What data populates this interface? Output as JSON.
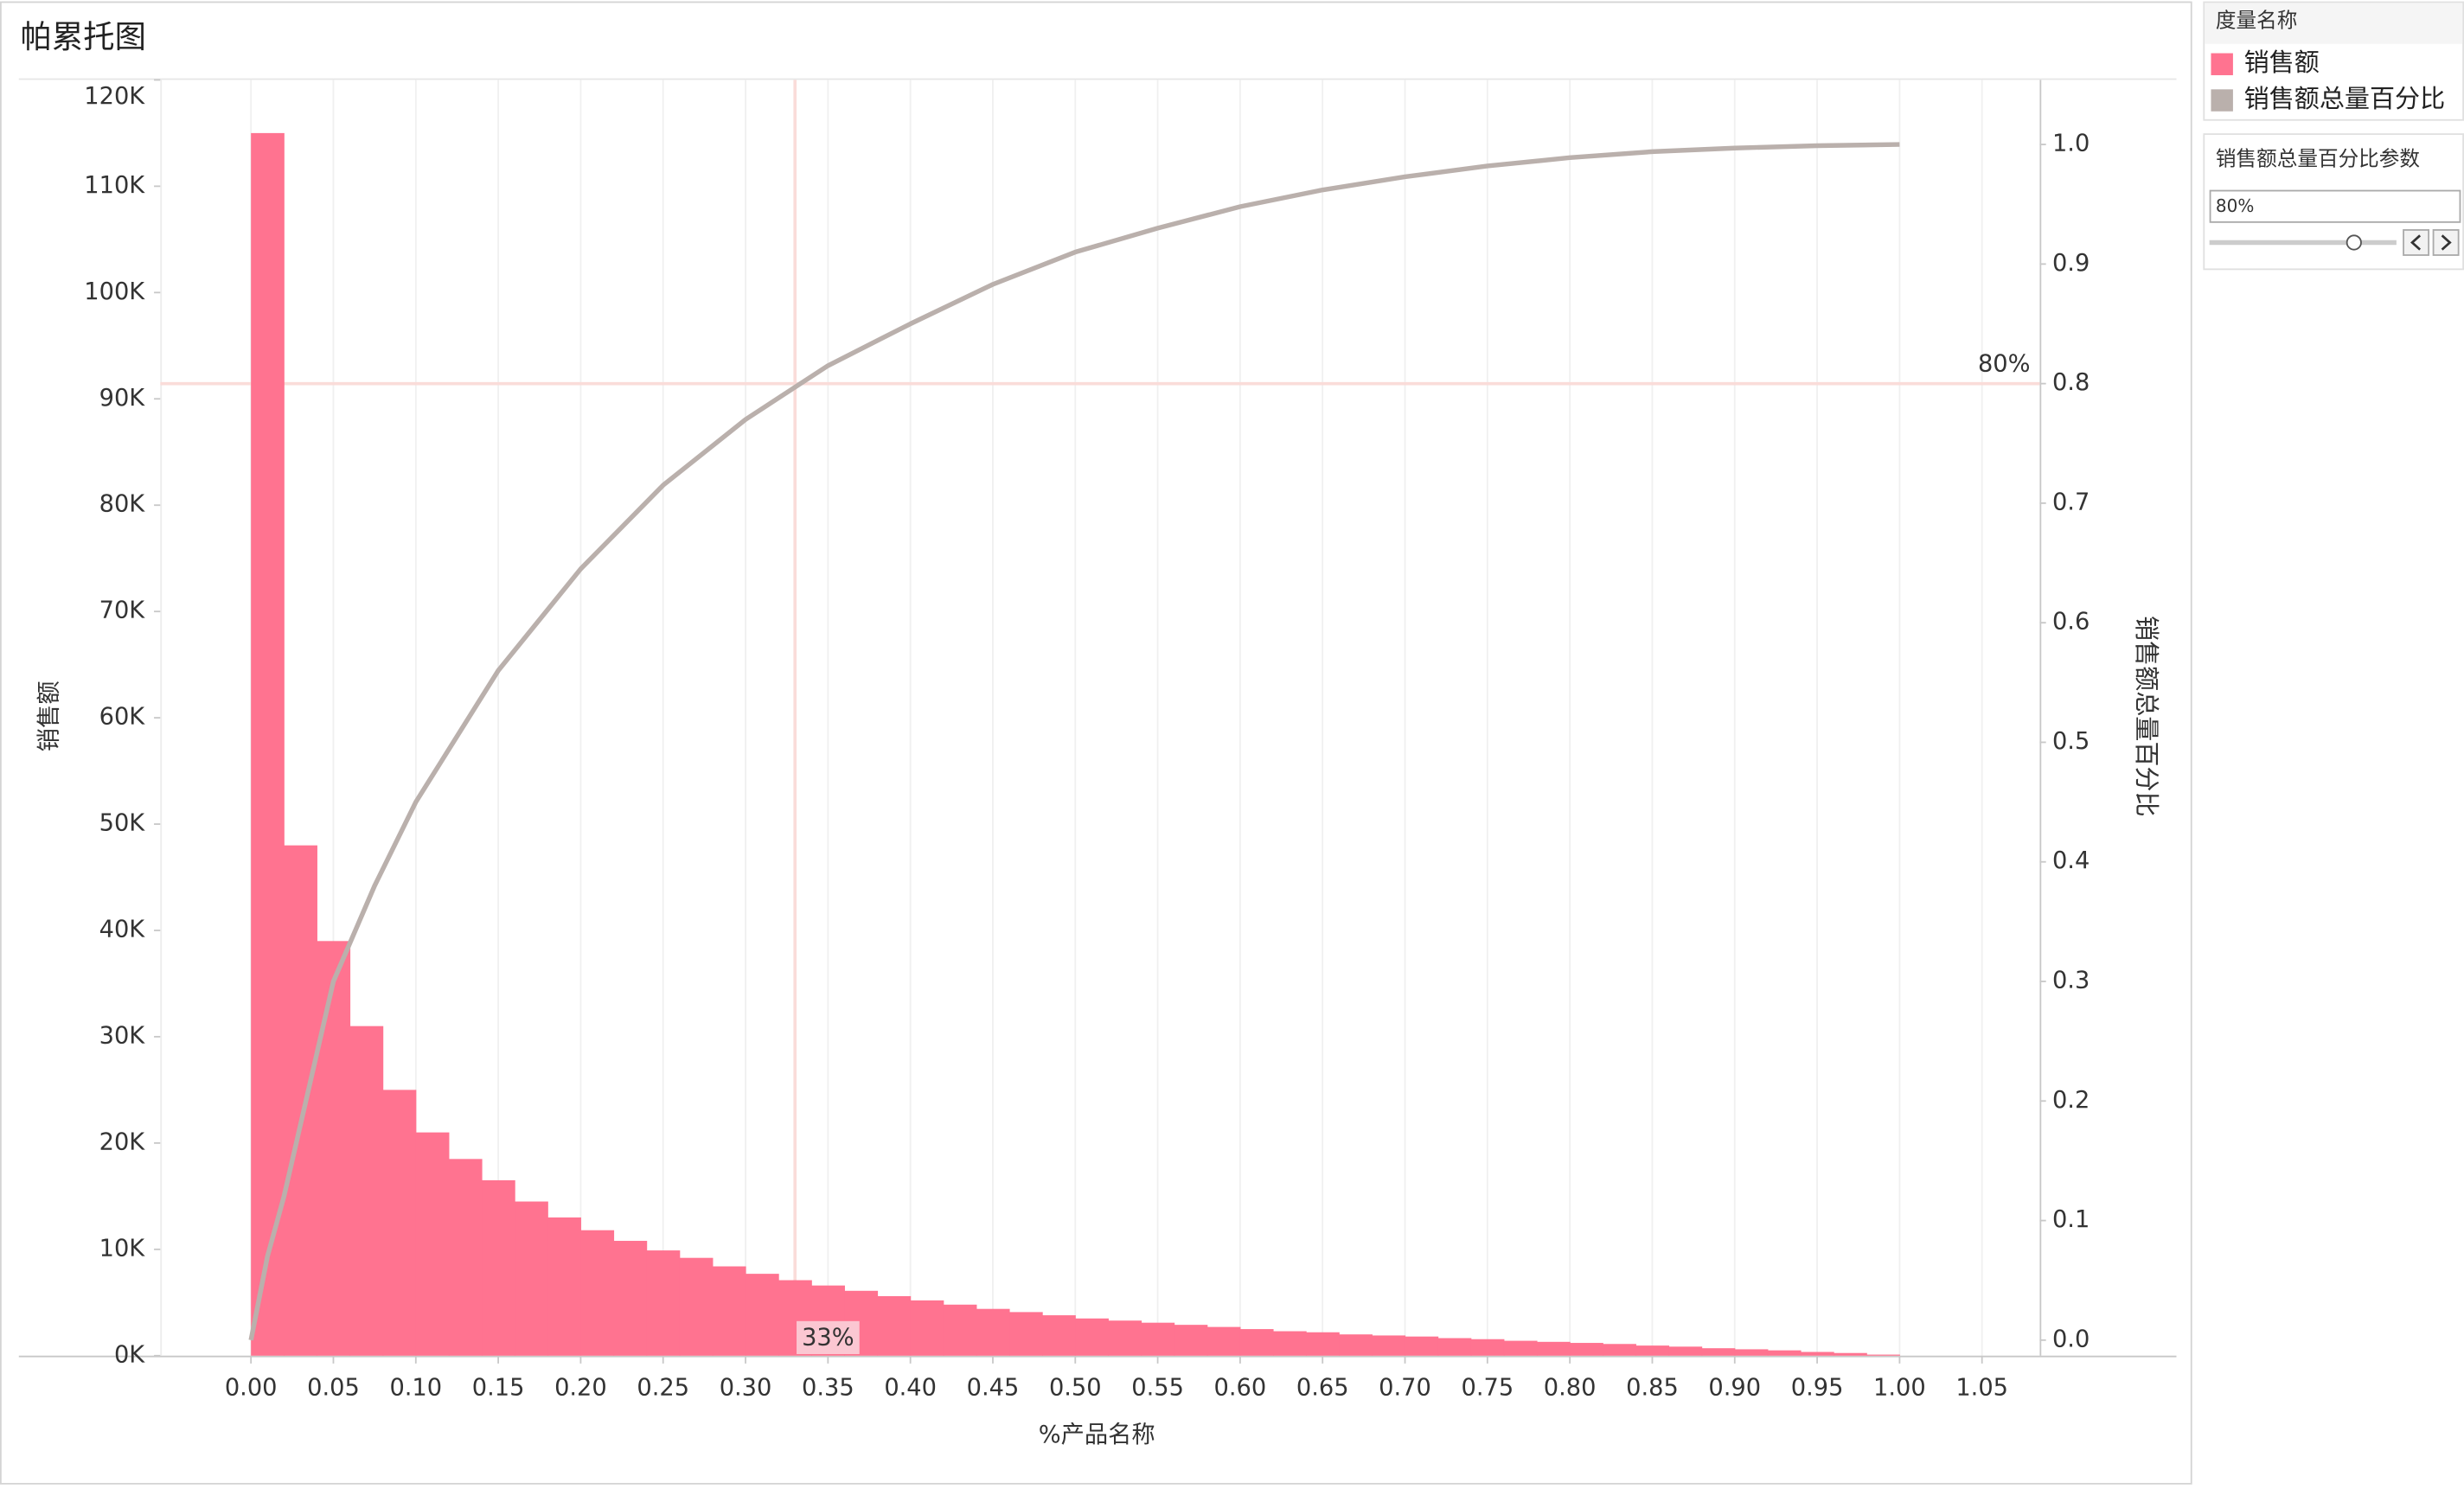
{
  "chart_data": {
    "type": "pareto",
    "title": "帕累托图",
    "x_label": "%产品名称",
    "y_label": "销售额",
    "y2_label": "销售额总量百分比",
    "legend_title": "度量名称",
    "parameter_title": "销售额总量百分比参数",
    "parameter_value": "80%",
    "xlim": [
      -0.055,
      1.085
    ],
    "xticks": [
      {
        "value": 0,
        "label": "0.00"
      },
      {
        "value": 0.05,
        "label": "0.05"
      },
      {
        "value": 0.1,
        "label": "0.10"
      },
      {
        "value": 0.15,
        "label": "0.15"
      },
      {
        "value": 0.2,
        "label": "0.20"
      },
      {
        "value": 0.25,
        "label": "0.25"
      },
      {
        "value": 0.3,
        "label": "0.30"
      },
      {
        "value": 0.35,
        "label": "0.35"
      },
      {
        "value": 0.4,
        "label": "0.40"
      },
      {
        "value": 0.45,
        "label": "0.45"
      },
      {
        "value": 0.5,
        "label": "0.50"
      },
      {
        "value": 0.55,
        "label": "0.55"
      },
      {
        "value": 0.6,
        "label": "0.60"
      },
      {
        "value": 0.65,
        "label": "0.65"
      },
      {
        "value": 0.7,
        "label": "0.70"
      },
      {
        "value": 0.75,
        "label": "0.75"
      },
      {
        "value": 0.8,
        "label": "0.80"
      },
      {
        "value": 0.85,
        "label": "0.85"
      },
      {
        "value": 0.9,
        "label": "0.90"
      },
      {
        "value": 0.95,
        "label": "0.95"
      },
      {
        "value": 1,
        "label": "1.00"
      },
      {
        "value": 1.05,
        "label": "1.05"
      }
    ],
    "ylim": [
      0,
      120000
    ],
    "yticks": [
      {
        "value": 0,
        "label": "0K"
      },
      {
        "value": 10000,
        "label": "10K"
      },
      {
        "value": 20000,
        "label": "20K"
      },
      {
        "value": 30000,
        "label": "30K"
      },
      {
        "value": 40000,
        "label": "40K"
      },
      {
        "value": 50000,
        "label": "50K"
      },
      {
        "value": 60000,
        "label": "60K"
      },
      {
        "value": 70000,
        "label": "70K"
      },
      {
        "value": 80000,
        "label": "80K"
      },
      {
        "value": 90000,
        "label": "90K"
      },
      {
        "value": 100000,
        "label": "100K"
      },
      {
        "value": 110000,
        "label": "110K"
      },
      {
        "value": 120000,
        "label": "120K"
      }
    ],
    "y2lim": [
      -0.013,
      1.054
    ],
    "y2ticks": [
      {
        "value": 0,
        "label": "0.0"
      },
      {
        "value": 0.1,
        "label": "0.1"
      },
      {
        "value": 0.2,
        "label": "0.2"
      },
      {
        "value": 0.3,
        "label": "0.3"
      },
      {
        "value": 0.4,
        "label": "0.4"
      },
      {
        "value": 0.5,
        "label": "0.5"
      },
      {
        "value": 0.6,
        "label": "0.6"
      },
      {
        "value": 0.7,
        "label": "0.7"
      },
      {
        "value": 0.8,
        "label": "0.8"
      },
      {
        "value": 0.9,
        "label": "0.9"
      },
      {
        "value": 1,
        "label": "1.0"
      }
    ],
    "xgrid": true,
    "reference_lines": {
      "y2": {
        "value": 0.8,
        "label": "80%"
      },
      "x": {
        "value": 0.33,
        "label": "33%"
      }
    },
    "series": [
      {
        "name": "销售额",
        "type": "bar",
        "color": "#ff7390",
        "x": [
          0,
          0.02,
          0.04,
          0.06,
          0.08,
          0.1,
          0.12,
          0.14,
          0.16,
          0.18,
          0.2,
          0.22,
          0.24,
          0.26,
          0.28,
          0.3,
          0.32,
          0.34,
          0.36,
          0.38,
          0.4,
          0.42,
          0.44,
          0.46,
          0.48,
          0.5,
          0.52,
          0.54,
          0.56,
          0.58,
          0.6,
          0.62,
          0.64,
          0.66,
          0.68,
          0.7,
          0.72,
          0.74,
          0.76,
          0.78,
          0.8,
          0.82,
          0.84,
          0.86,
          0.88,
          0.9,
          0.92,
          0.94,
          0.96,
          0.98
        ],
        "values": [
          115000,
          48000,
          39000,
          31000,
          25000,
          21000,
          18500,
          16500,
          14500,
          13000,
          11800,
          10800,
          9900,
          9200,
          8400,
          7700,
          7100,
          6600,
          6100,
          5600,
          5200,
          4800,
          4400,
          4100,
          3800,
          3500,
          3300,
          3100,
          2900,
          2700,
          2500,
          2300,
          2200,
          2000,
          1900,
          1800,
          1650,
          1550,
          1400,
          1300,
          1200,
          1100,
          950,
          850,
          700,
          600,
          500,
          350,
          250,
          100
        ]
      },
      {
        "name": "销售额总量百分比",
        "type": "line",
        "axis": "y2",
        "color": "#bab0ac",
        "x": [
          0,
          0.01,
          0.02,
          0.03,
          0.05,
          0.075,
          0.1,
          0.15,
          0.2,
          0.25,
          0.3,
          0.35,
          0.4,
          0.45,
          0.5,
          0.55,
          0.6,
          0.65,
          0.7,
          0.75,
          0.8,
          0.85,
          0.9,
          0.95,
          1
        ],
        "values": [
          0,
          0.07,
          0.12,
          0.18,
          0.3,
          0.38,
          0.45,
          0.56,
          0.645,
          0.715,
          0.77,
          0.815,
          0.85,
          0.883,
          0.91,
          0.93,
          0.948,
          0.962,
          0.973,
          0.982,
          0.989,
          0.994,
          0.997,
          0.999,
          1
        ]
      }
    ]
  }
}
